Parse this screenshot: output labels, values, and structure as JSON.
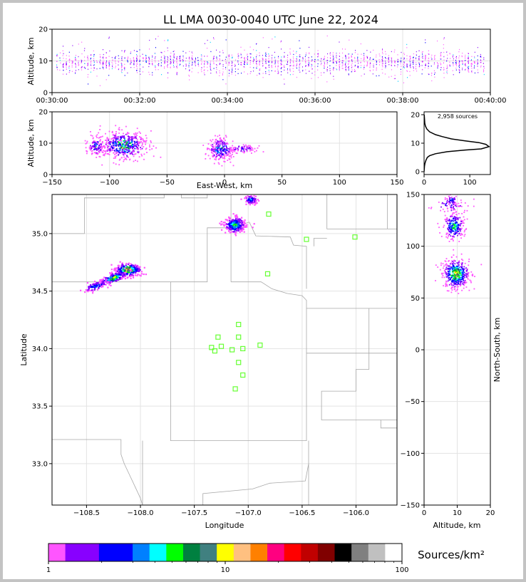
{
  "title": "LL LMA 0030-0040 UTC June 22, 2024",
  "colors": {
    "colorbar": [
      "#ff55ff",
      "#8800ff",
      "#8800ff",
      "#0000ff",
      "#0000ff",
      "#0080ff",
      "#00ffff",
      "#00ff00",
      "#008040",
      "#408080",
      "#ffff00",
      "#ffc080",
      "#ff8000",
      "#ff0080",
      "#ff0000",
      "#c00000",
      "#800000",
      "#000000",
      "#808080",
      "#c0c0c0",
      "#ffffff"
    ],
    "stations": "#66ff33",
    "borders": "#a8a8a8"
  },
  "chart_data": [
    {
      "id": "time-height",
      "type": "scatter",
      "xlabel": "",
      "ylabel": "Altitude, km",
      "ylim": [
        0,
        20
      ],
      "x_ticks": [
        "00:30:00",
        "00:32:00",
        "00:34:00",
        "00:36:00",
        "00:38:00",
        "00:40:00"
      ],
      "y_ticks": [
        "0",
        "10",
        "20"
      ],
      "grid": true
    },
    {
      "id": "ew-height",
      "type": "scatter",
      "xlabel": "East-West, km",
      "ylabel": "Altitude, km",
      "xlim": [
        -150,
        150
      ],
      "ylim": [
        0,
        20
      ],
      "x_ticks": [
        "−150",
        "−100",
        "−50",
        "0",
        "50",
        "100",
        "150"
      ],
      "y_ticks": [
        "0",
        "10",
        "20"
      ],
      "grid": true
    },
    {
      "id": "altitude-histogram",
      "type": "line",
      "annotation": "2,958 sources",
      "xlim": [
        0,
        145
      ],
      "ylim": [
        -1,
        21
      ],
      "x_ticks": [
        "0",
        "100"
      ],
      "y_ticks": [
        "0",
        "10",
        "20"
      ],
      "profile": [
        [
          0.3,
          20
        ],
        [
          1.5,
          17
        ],
        [
          3,
          16
        ],
        [
          6,
          15
        ],
        [
          12,
          14
        ],
        [
          25,
          13
        ],
        [
          40,
          12.3
        ],
        [
          60,
          11.5
        ],
        [
          90,
          10.8
        ],
        [
          120,
          10.2
        ],
        [
          135,
          9.6
        ],
        [
          142,
          8.8
        ],
        [
          125,
          8
        ],
        [
          90,
          7.6
        ],
        [
          50,
          7
        ],
        [
          25,
          6.3
        ],
        [
          12,
          5.6
        ],
        [
          7,
          5
        ],
        [
          4,
          4
        ],
        [
          2,
          3
        ],
        [
          1,
          2
        ],
        [
          0.5,
          1
        ],
        [
          0,
          0
        ]
      ]
    },
    {
      "id": "plan-view",
      "type": "scatter",
      "xlabel": "Longitude",
      "ylabel": "Latitude",
      "xlim": [
        -108.82,
        -105.62
      ],
      "ylim": [
        32.64,
        35.34
      ],
      "x_ticks": [
        "−108.5",
        "−108.0",
        "−107.5",
        "−107.0",
        "−106.5",
        "−106.0"
      ],
      "y_ticks": [
        "33.0",
        "33.5",
        "34.0",
        "34.5",
        "35.0"
      ],
      "grid": true,
      "stations": [
        [
          -107.34,
          34.01
        ],
        [
          -107.28,
          34.1
        ],
        [
          -107.25,
          34.02
        ],
        [
          -107.31,
          33.98
        ],
        [
          -107.15,
          33.99
        ],
        [
          -107.09,
          34.21
        ],
        [
          -107.09,
          34.1
        ],
        [
          -107.05,
          34.0
        ],
        [
          -106.89,
          34.03
        ],
        [
          -107.09,
          33.88
        ],
        [
          -107.05,
          33.77
        ],
        [
          -107.12,
          33.65
        ],
        [
          -106.82,
          34.65
        ],
        [
          -106.81,
          35.17
        ],
        [
          -106.46,
          34.95
        ],
        [
          -106.01,
          34.97
        ]
      ]
    },
    {
      "id": "height-ns",
      "type": "scatter",
      "xlabel": "Altitude, km",
      "ylabel": "North-South, km",
      "xlim": [
        0,
        20
      ],
      "ylim": [
        -150,
        150
      ],
      "x_ticks": [
        "0",
        "10",
        "20"
      ],
      "y_ticks": [
        "−150",
        "−100",
        "−50",
        "0",
        "50",
        "100",
        "150"
      ],
      "grid": true
    },
    {
      "id": "colorbar",
      "type": "heatmap",
      "label": "Sources/km²",
      "scale": "log",
      "range": [
        1,
        100
      ],
      "ticks": [
        "1",
        "10",
        "100"
      ]
    }
  ]
}
